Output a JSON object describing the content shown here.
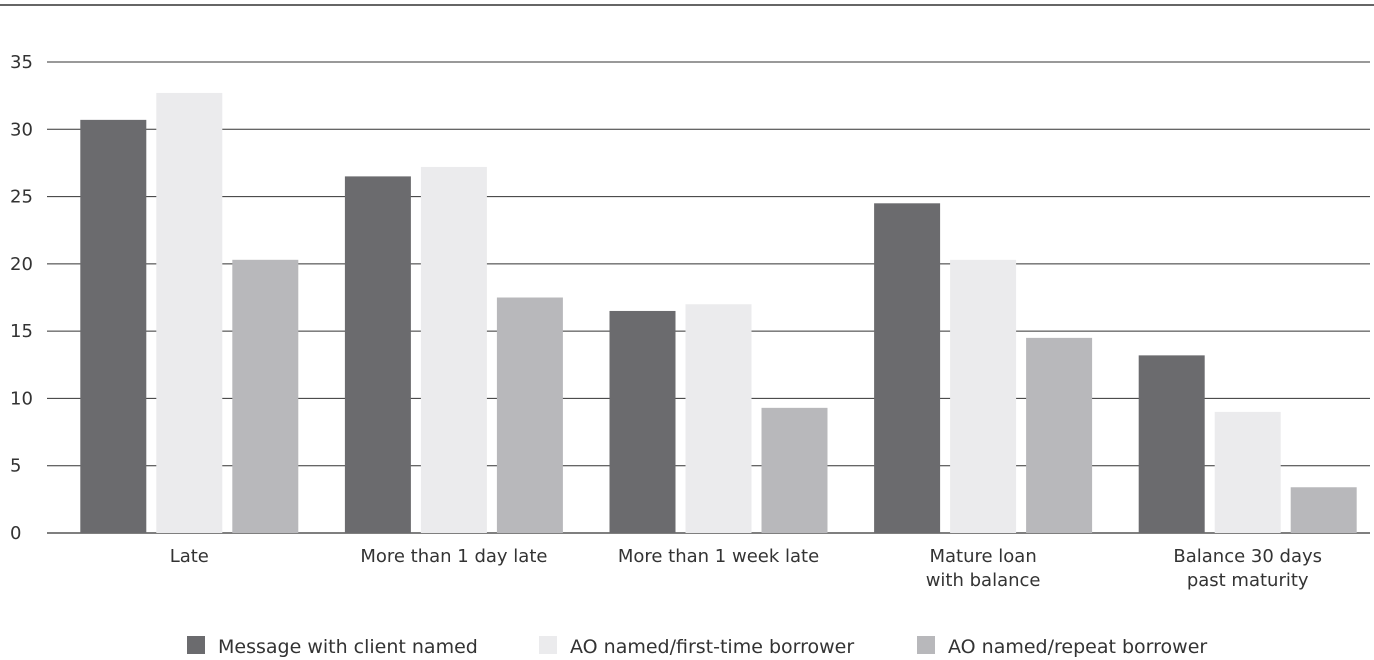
{
  "chart_data": {
    "type": "bar",
    "title": "",
    "xlabel": "",
    "ylabel": "",
    "ylim": [
      0,
      35
    ],
    "yticks": [
      0,
      5,
      10,
      15,
      20,
      25,
      30,
      35
    ],
    "grid": true,
    "legend_position": "bottom",
    "categories": [
      [
        "Late"
      ],
      [
        "More than 1 day late"
      ],
      [
        "More than 1 week late"
      ],
      [
        "Mature loan",
        "with balance"
      ],
      [
        "Balance 30 days",
        "past maturity"
      ]
    ],
    "series": [
      {
        "name": "Message with client named",
        "color": "#6b6b6e",
        "values": [
          30.7,
          26.5,
          16.5,
          24.5,
          13.2
        ]
      },
      {
        "name": "AO named/first-time borrower",
        "color": "#ebebed",
        "values": [
          32.7,
          27.2,
          17.0,
          20.3,
          9.0
        ]
      },
      {
        "name": "AO named/repeat borrower",
        "color": "#b8b8bb",
        "values": [
          20.3,
          17.5,
          9.3,
          14.5,
          3.4
        ]
      }
    ]
  }
}
